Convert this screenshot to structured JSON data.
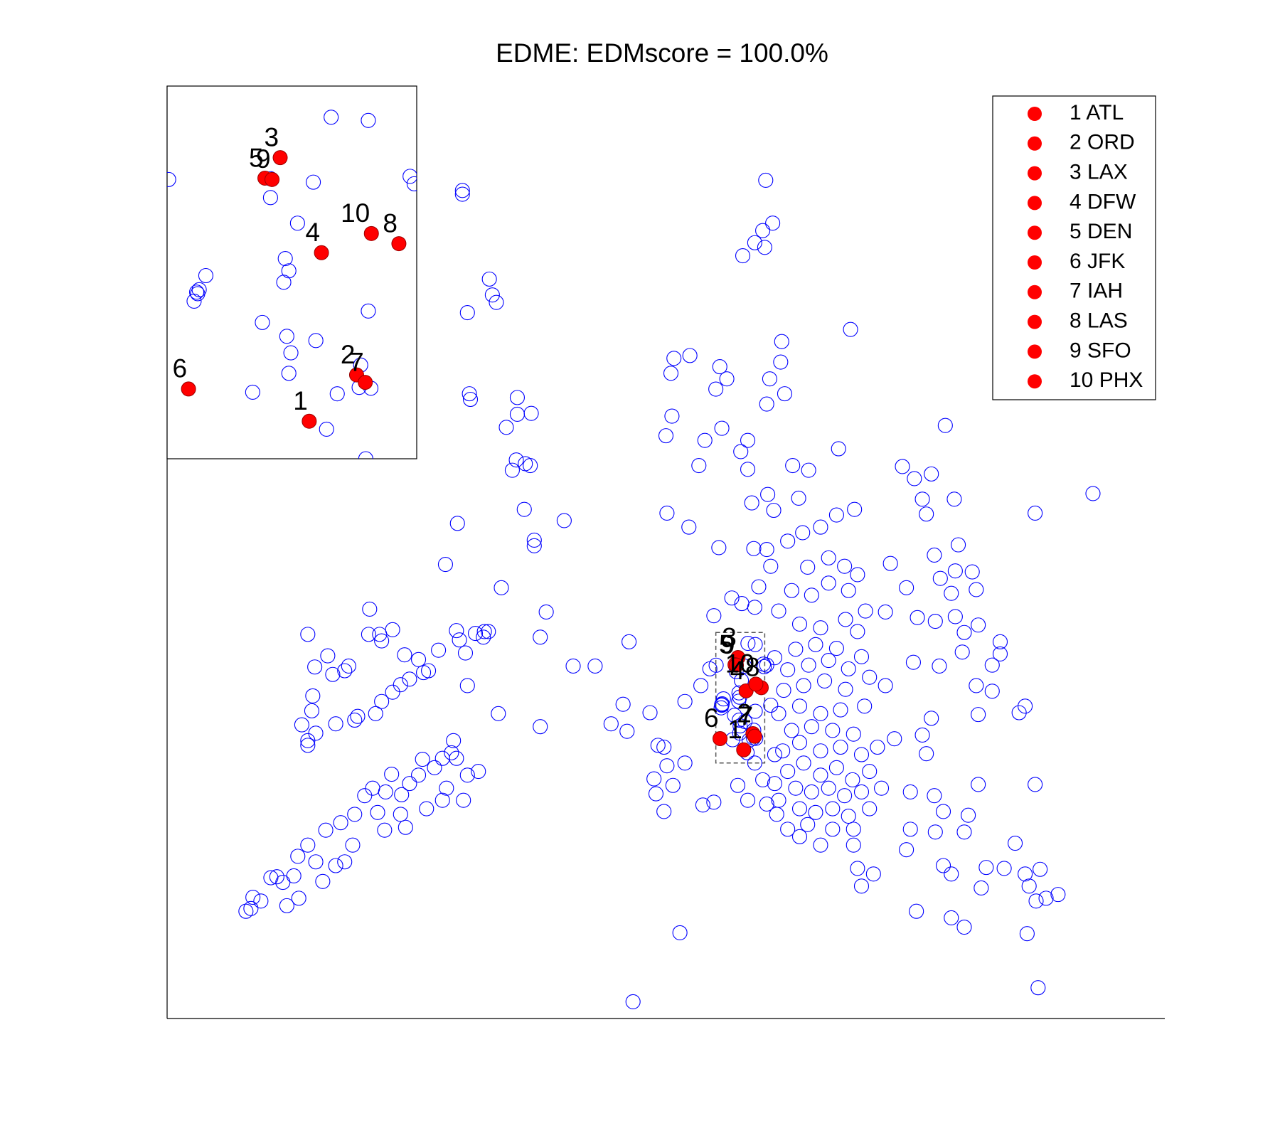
{
  "chart_data": {
    "type": "scatter",
    "title": "EDME: EDMscore = 100.0%",
    "xlim": [
      0,
      100
    ],
    "ylim": [
      0,
      100
    ],
    "legend": "northeast",
    "inset": {
      "xlim": [
        55,
        59.9
      ],
      "ylim": [
        27.4,
        41.4
      ]
    },
    "series": [
      {
        "color": "#0000ff",
        "marker": "open",
        "x": [
          58.22,
          58.95,
          55.03,
          57.03,
          57.87,
          59.77,
          59.85,
          57.56,
          57.32,
          57.39,
          57.29,
          55.76,
          55.63,
          55.53,
          55.58,
          56.87,
          58.95,
          57.35,
          57.92,
          57.43,
          57.39,
          56.68,
          58.34,
          58.13,
          58.8,
          59.0,
          58.77,
          57.03,
          29.6,
          29.6,
          32.3,
          32.6,
          33.0,
          30.1,
          30.3,
          30.4,
          35.1,
          36.5,
          35.1,
          34.0,
          35.0,
          35.9,
          34.6,
          36.4,
          29.1,
          35.8,
          36.8,
          36.8,
          39.8,
          27.9,
          33.5,
          38.0,
          20.3,
          14.1,
          20.2,
          21.5,
          22.6,
          21.3,
          16.1,
          14.8,
          16.6,
          18.2,
          17.8,
          23.8,
          25.2,
          27.2,
          29.0,
          29.3,
          29.9,
          31.8,
          32.2,
          31.7,
          30.9,
          37.4,
          40.7,
          42.9,
          46.3,
          30.1,
          33.2,
          37.4,
          23.4,
          24.3,
          25.7,
          26.2,
          22.6,
          21.5,
          20.9,
          19.1,
          18.8,
          16.9,
          14.6,
          14.5,
          13.5,
          14.9,
          14.1,
          14.1,
          28.7,
          28.5,
          27.6,
          29.0,
          31.2,
          30.1,
          26.8,
          25.6,
          25.2,
          24.3,
          22.5,
          21.9,
          20.6,
          19.8,
          23.5,
          26.0,
          27.6,
          29.7,
          28.0,
          23.4,
          21.1,
          18.8,
          17.4,
          15.9,
          21.8,
          23.9,
          18.6,
          14.1,
          13.1,
          14.9,
          16.9,
          17.8,
          11.0,
          10.4,
          11.6,
          12.7,
          15.6,
          8.6,
          9.4,
          7.9,
          8.4,
          12.0,
          13.2,
          60.0,
          60.7,
          59.7,
          58.9,
          59.9,
          57.7,
          61.6,
          61.5,
          68.5,
          50.8,
          52.4,
          50.5,
          55.4,
          56.1,
          55.0,
          60.1,
          61.9,
          60.4,
          50.6,
          50.0,
          53.9,
          55.6,
          58.2,
          57.5,
          53.3,
          58.2,
          62.7,
          64.3,
          67.3,
          78.0,
          73.7,
          74.9,
          76.6,
          78.9,
          92.8,
          87.0,
          75.7,
          76.1,
          68.9,
          67.1,
          63.3,
          60.2,
          58.6,
          60.8,
          50.1,
          52.3,
          55.3,
          58.8,
          60.1,
          62.2,
          63.7,
          65.5,
          79.3,
          76.9,
          72.5,
          77.5,
          79.0,
          80.7,
          81.1,
          78.6,
          74.1,
          72.0,
          75.2,
          77.0,
          79.0,
          81.3,
          79.9,
          83.5,
          83.5,
          82.7,
          79.7,
          81.1,
          82.7,
          77.4,
          74.8,
          72.0,
          69.9,
          86.0,
          85.4,
          81.3,
          76.6,
          75.7,
          76.1,
          72.9,
          87.0,
          81.3,
          77.8,
          74.5,
          76.9,
          80.3,
          79.9,
          85.0,
          77.0,
          74.1,
          74.5,
          77.8,
          78.6,
          82.1,
          83.9,
          86.0,
          87.5,
          86.4,
          88.1,
          89.3,
          81.6,
          87.1,
          75.1,
          78.6,
          79.9,
          86.2,
          87.3,
          51.4,
          46.7,
          70.8,
          69.2,
          69.6,
          68.8,
          65.5,
          63.4,
          62.2,
          62.2,
          63.8,
          65.5,
          67.1,
          68.7,
          70.4,
          63.0,
          64.6,
          66.3,
          67.9,
          69.6,
          71.6,
          61.3,
          63.4,
          65.0,
          66.7,
          68.3,
          70.4,
          64.2,
          66.7,
          68.8,
          60.9,
          61.7,
          63.4,
          65.5,
          67.5,
          69.6,
          71.2,
          62.6,
          64.6,
          66.7,
          68.8,
          61.3,
          63.4,
          65.5,
          67.5,
          61.8,
          63.8,
          65.9,
          68.0,
          62.2,
          64.3,
          66.3,
          68.3,
          70.4,
          60.9,
          63.0,
          65.0,
          67.1,
          69.6,
          63.4,
          65.5,
          68.0,
          69.2,
          70.0,
          61.3,
          62.6,
          64.6,
          66.3,
          68.3,
          69.2,
          64.2,
          66.3,
          67.9,
          60.5,
          59.3,
          57.6,
          58.9,
          54.8,
          56.6,
          54.4,
          53.5,
          51.9,
          55.6,
          45.7,
          44.5,
          46.1,
          48.4,
          49.2,
          49.8,
          51.9,
          50.1,
          48.8,
          50.7,
          49.0,
          49.8,
          53.7,
          54.8,
          57.2,
          58.2,
          60.1,
          61.1,
          59.7,
          58.9,
          60.9,
          60.5,
          60.1
        ],
        "y": [
          40.23,
          40.11,
          37.89,
          37.21,
          37.79,
          38.01,
          37.73,
          36.25,
          34.92,
          34.46,
          34.03,
          34.28,
          33.75,
          33.32,
          33.66,
          32.52,
          32.95,
          32.0,
          31.84,
          31.38,
          30.61,
          29.9,
          29.84,
          28.51,
          30.92,
          30.05,
          30.08,
          37.92,
          88.8,
          88.4,
          79.3,
          77.6,
          76.8,
          75.7,
          67.0,
          66.4,
          66.6,
          64.9,
          64.8,
          63.4,
          59.9,
          59.5,
          58.8,
          59.3,
          53.1,
          54.6,
          51.3,
          50.7,
          53.4,
          48.7,
          46.2,
          43.6,
          43.9,
          41.2,
          41.2,
          40.5,
          41.7,
          41.2,
          38.9,
          37.7,
          36.9,
          37.8,
          37.3,
          39.0,
          38.5,
          39.5,
          41.6,
          40.6,
          39.2,
          41.5,
          41.5,
          40.9,
          41.3,
          40.9,
          37.8,
          37.8,
          40.4,
          35.7,
          32.7,
          31.3,
          35.8,
          36.4,
          37.1,
          37.3,
          35.0,
          34.0,
          32.7,
          32.4,
          32.0,
          31.6,
          34.6,
          33.0,
          31.5,
          30.6,
          29.8,
          29.3,
          29.8,
          28.5,
          27.9,
          27.9,
          26.5,
          26.1,
          26.9,
          27.8,
          26.1,
          25.2,
          26.2,
          24.3,
          24.7,
          23.9,
          24.0,
          22.5,
          23.4,
          23.4,
          24.7,
          21.9,
          22.1,
          21.9,
          21.0,
          20.2,
          20.2,
          20.5,
          18.6,
          18.6,
          17.4,
          16.8,
          16.4,
          16.8,
          15.2,
          15.1,
          14.6,
          15.3,
          14.7,
          13.0,
          12.6,
          11.5,
          11.8,
          12.1,
          12.9,
          89.9,
          85.3,
          84.5,
          83.2,
          82.7,
          81.8,
          72.6,
          70.4,
          73.9,
          70.8,
          71.1,
          69.2,
          69.9,
          68.6,
          67.5,
          65.9,
          67.0,
          68.6,
          64.6,
          62.5,
          62.0,
          63.3,
          62.0,
          60.8,
          59.3,
          58.9,
          59.3,
          58.8,
          61.1,
          63.6,
          59.2,
          57.9,
          58.4,
          55.7,
          56.3,
          54.2,
          55.7,
          54.1,
          54.6,
          54.0,
          55.8,
          56.2,
          55.3,
          54.5,
          54.2,
          52.7,
          50.5,
          50.4,
          50.3,
          51.2,
          52.1,
          52.7,
          50.8,
          49.7,
          48.8,
          47.2,
          48.0,
          47.9,
          46.0,
          45.6,
          46.2,
          43.6,
          43.0,
          42.6,
          43.1,
          42.2,
          41.4,
          40.4,
          39.1,
          37.9,
          39.3,
          35.7,
          35.1,
          37.8,
          38.2,
          35.7,
          33.5,
          33.5,
          32.8,
          32.6,
          32.2,
          30.4,
          28.4,
          30.0,
          25.1,
          25.1,
          22.2,
          24.3,
          23.9,
          21.8,
          20.0,
          18.8,
          20.0,
          18.1,
          20.3,
          16.4,
          15.5,
          16.2,
          16.1,
          15.5,
          16.0,
          14.2,
          12.9,
          13.3,
          14.0,
          12.6,
          11.5,
          10.8,
          9.8,
          9.1,
          3.3,
          9.2,
          1.8,
          15.5,
          16.1,
          14.2,
          18.6,
          18.6,
          19.5,
          20.3,
          26.5,
          27.4,
          26.1,
          26.9,
          25.6,
          26.5,
          24.7,
          24.3,
          24.7,
          23.9,
          24.3,
          24.7,
          23.4,
          22.5,
          22.1,
          22.5,
          21.7,
          22.5,
          20.8,
          20.3,
          20.3,
          25.2,
          28.7,
          29.6,
          28.7,
          29.1,
          28.3,
          29.1,
          30.9,
          31.3,
          30.9,
          30.5,
          32.7,
          33.5,
          32.7,
          33.1,
          35.2,
          35.7,
          36.2,
          35.3,
          37.4,
          37.9,
          38.4,
          37.5,
          36.6,
          38.7,
          39.6,
          40.1,
          39.7,
          38.8,
          42.3,
          41.9,
          42.8,
          41.5,
          43.7,
          43.7,
          45.9,
          45.4,
          46.7,
          45.9,
          47.6,
          48.4,
          49.4,
          48.5,
          48.5,
          46.3,
          44.5,
          44.1,
          43.2,
          45.1,
          37.5,
          35.7,
          34.0,
          33.6,
          33.7,
          31.6,
          30.8,
          32.8,
          29.3,
          29.1,
          27.4,
          27.1,
          25.7,
          25.0,
          24.1,
          22.2,
          22.9,
          23.2,
          25.0,
          23.4,
          23.0,
          21.9,
          25.6,
          27.4,
          28.3,
          33.6,
          37.9
        ]
      },
      {
        "name": "1 ATL",
        "label": "1",
        "color": "#ff0000",
        "marker": "filled",
        "x": [
          57.79
        ],
        "y": [
          28.81
        ]
      },
      {
        "name": "2 ORD",
        "label": "2",
        "color": "#ff0000",
        "marker": "filled",
        "x": [
          58.72
        ],
        "y": [
          30.55
        ]
      },
      {
        "name": "3 LAX",
        "label": "3",
        "color": "#ff0000",
        "marker": "filled",
        "x": [
          57.22
        ],
        "y": [
          38.71
        ]
      },
      {
        "name": "4 DFW",
        "label": "4",
        "color": "#ff0000",
        "marker": "filled",
        "x": [
          58.03
        ],
        "y": [
          35.14
        ]
      },
      {
        "name": "5 DEN",
        "label": "5",
        "color": "#ff0000",
        "marker": "filled",
        "x": [
          56.92
        ],
        "y": [
          37.94
        ]
      },
      {
        "name": "6 JFK",
        "label": "6",
        "color": "#ff0000",
        "marker": "filled",
        "x": [
          55.42
        ],
        "y": [
          30.02
        ]
      },
      {
        "name": "7 IAH",
        "label": "7",
        "color": "#ff0000",
        "marker": "filled",
        "x": [
          58.89
        ],
        "y": [
          30.27
        ]
      },
      {
        "name": "8 LAS",
        "label": "8",
        "color": "#ff0000",
        "marker": "filled",
        "x": [
          59.55
        ],
        "y": [
          35.48
        ]
      },
      {
        "name": "9 SFO",
        "label": "9",
        "color": "#ff0000",
        "marker": "filled",
        "x": [
          57.06
        ],
        "y": [
          37.89
        ]
      },
      {
        "name": "10 PHX",
        "label": "10",
        "color": "#ff0000",
        "marker": "filled",
        "x": [
          59.01
        ],
        "y": [
          35.86
        ]
      }
    ]
  }
}
